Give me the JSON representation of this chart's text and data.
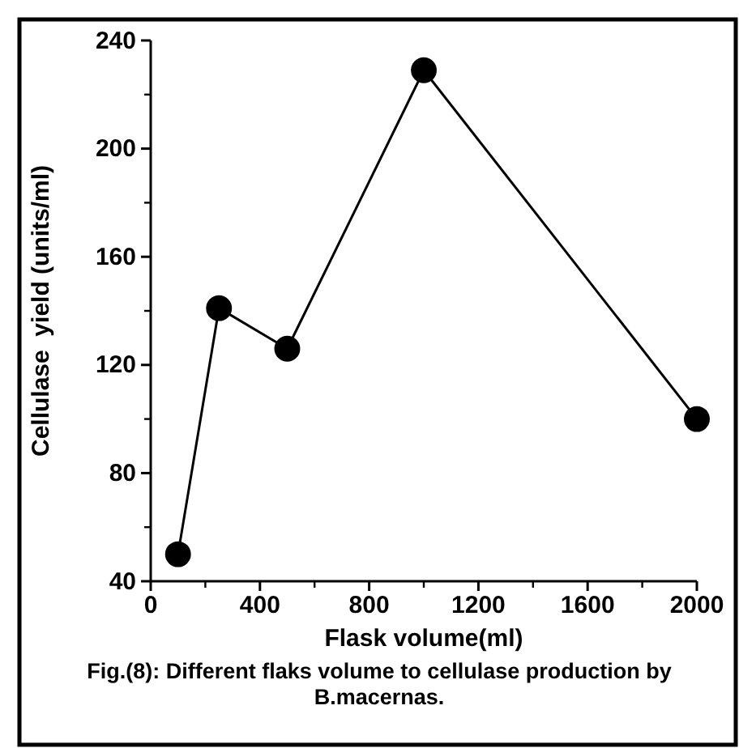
{
  "chart_data": {
    "type": "line",
    "xlabel": "Flask volume(ml)",
    "ylabel": "Cellulase  yield (units/ml)",
    "x": [
      100,
      250,
      500,
      1000,
      2000
    ],
    "series": [
      {
        "color": "#000000",
        "values": [
          50,
          141,
          126,
          229,
          100
        ]
      }
    ],
    "xlim": [
      0,
      2000
    ],
    "xticks": [
      0,
      400,
      800,
      1200,
      1600,
      2000
    ],
    "ylim": [
      40,
      240
    ],
    "yticks": [
      40,
      80,
      120,
      160,
      200,
      240
    ],
    "marker": "circle",
    "line_style": "solid",
    "grid": false,
    "annotations": [
      "Fig.(8): Different flaks volume to cellulase production by B.macernas."
    ]
  }
}
